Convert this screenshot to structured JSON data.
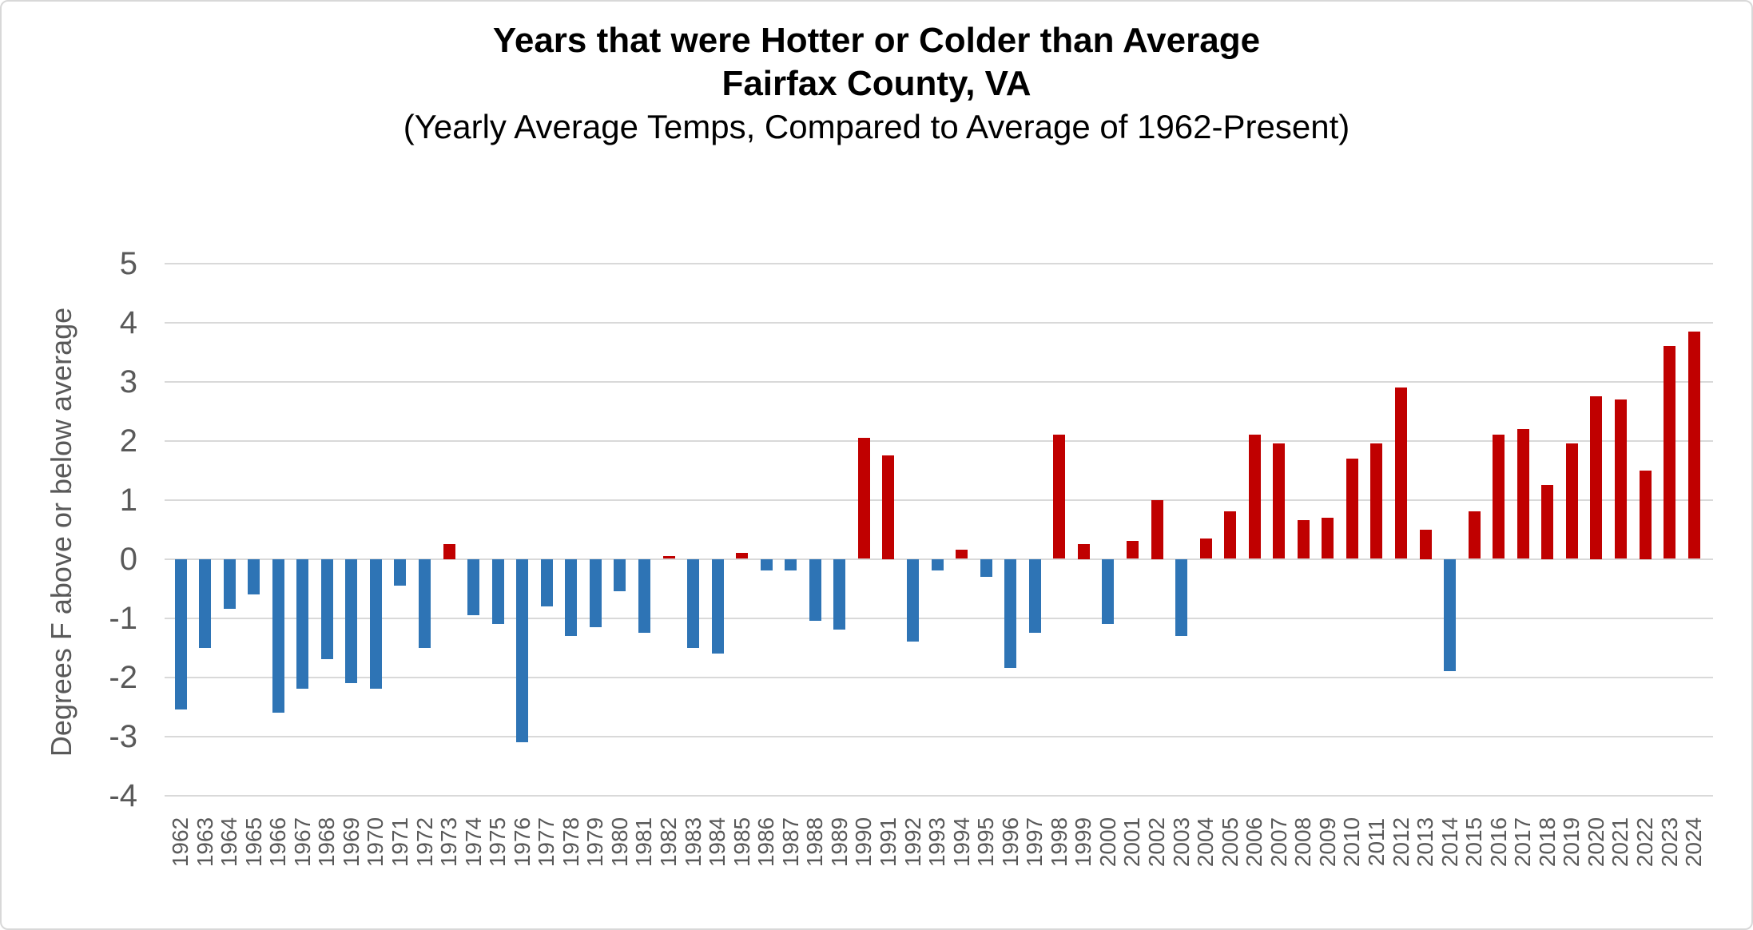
{
  "title": {
    "line1": "Years that were Hotter or Colder than Average",
    "line2": "Fairfax County, VA",
    "line3": "(Yearly Average Temps, Compared to Average of 1962-Present)"
  },
  "chart_data": {
    "type": "bar",
    "title": "Years that were Hotter or Colder than Average",
    "subtitle1": "Fairfax County, VA",
    "subtitle2": "(Yearly Average Temps, Compared to Average of 1962-Present)",
    "xlabel": "",
    "ylabel": "Degrees F above or below average",
    "ylim": [
      -4,
      5
    ],
    "y_ticks": [
      5,
      4,
      3,
      2,
      1,
      0,
      -1,
      -2,
      -3,
      -4
    ],
    "grid": true,
    "legend": false,
    "colors": {
      "positive_bar": "#c00000",
      "negative_bar": "#2e74b5",
      "gridline": "#d9d9d9",
      "axis_text": "#595959",
      "title_text": "#000000"
    },
    "categories": [
      1962,
      1963,
      1964,
      1965,
      1966,
      1967,
      1968,
      1969,
      1970,
      1971,
      1972,
      1973,
      1974,
      1975,
      1976,
      1977,
      1978,
      1979,
      1980,
      1981,
      1982,
      1983,
      1984,
      1985,
      1986,
      1987,
      1988,
      1989,
      1990,
      1991,
      1992,
      1993,
      1994,
      1995,
      1996,
      1997,
      1998,
      1999,
      2000,
      2001,
      2002,
      2003,
      2004,
      2005,
      2006,
      2007,
      2008,
      2009,
      2010,
      2011,
      2012,
      2013,
      2014,
      2015,
      2016,
      2017,
      2018,
      2019,
      2020,
      2021,
      2022,
      2023,
      2024
    ],
    "values": [
      -2.55,
      -1.5,
      -0.85,
      -0.6,
      -2.6,
      -2.2,
      -1.7,
      -2.1,
      -2.2,
      -0.45,
      -1.5,
      0.25,
      -0.95,
      -1.1,
      -3.1,
      -0.8,
      -1.3,
      -1.15,
      -0.55,
      -1.25,
      0.05,
      -1.5,
      -1.6,
      0.1,
      -0.2,
      -0.2,
      -1.05,
      -1.2,
      2.05,
      1.75,
      -1.4,
      -0.2,
      0.15,
      -0.3,
      -1.85,
      -1.25,
      2.1,
      0.25,
      -1.1,
      0.3,
      1.0,
      -1.3,
      0.35,
      0.8,
      2.1,
      1.95,
      0.65,
      0.7,
      1.7,
      1.95,
      2.9,
      0.5,
      -1.9,
      0.8,
      2.1,
      2.2,
      1.25,
      1.95,
      2.75,
      2.7,
      1.5,
      3.6,
      3.85
    ]
  }
}
